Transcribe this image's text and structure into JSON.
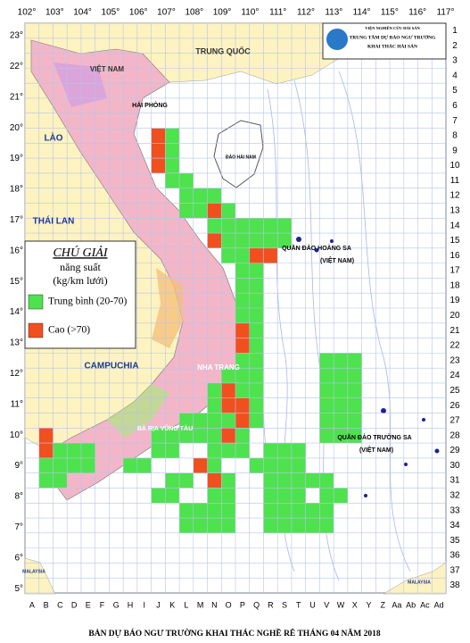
{
  "logo": {
    "lines": [
      "VIỆN NGHIÊN CỨU HẢI SẢN",
      "TRUNG TÂM DỰ BÁO NGƯ TRƯỜNG",
      "KHAI THÁC HẢI SẢN"
    ]
  },
  "map": {
    "longitude_labels": [
      "102°",
      "103°",
      "104°",
      "105°",
      "106°",
      "107°",
      "108°",
      "109°",
      "110°",
      "111°",
      "112°",
      "113°",
      "114°",
      "115°",
      "116°",
      "117°"
    ],
    "latitude_labels": [
      "23°",
      "22°",
      "21°",
      "20°",
      "19°",
      "18°",
      "17°",
      "16°",
      "15°",
      "14°",
      "13°",
      "12°",
      "11°",
      "10°",
      "9°",
      "8°",
      "7°",
      "6°",
      "5°"
    ],
    "row_labels": [
      "1",
      "2",
      "3",
      "4",
      "5",
      "6",
      "7",
      "8",
      "9",
      "10",
      "11",
      "12",
      "13",
      "14",
      "15",
      "16",
      "17",
      "18",
      "19",
      "20",
      "21",
      "22",
      "23",
      "24",
      "25",
      "26",
      "27",
      "28",
      "29",
      "30",
      "31",
      "32",
      "33",
      "34",
      "35",
      "36",
      "37",
      "38"
    ],
    "column_labels": [
      "A",
      "B",
      "C",
      "D",
      "E",
      "F",
      "G",
      "H",
      "I",
      "J",
      "K",
      "L",
      "M",
      "N",
      "O",
      "P",
      "Q",
      "R",
      "S",
      "T",
      "U",
      "V",
      "W",
      "X",
      "Y",
      "Z",
      "Aa",
      "Ab",
      "Ac",
      "Ad"
    ],
    "place_labels": [
      "TRUNG QUỐC",
      "VIỆT NAM",
      "LÀO",
      "THÁI LAN",
      "CAMPUCHIA",
      "HẢI PHÒNG",
      "ĐẢO HẢI NAM",
      "QUẦN ĐẢO HOÀNG SA",
      "(VIỆT NAM)",
      "QUẦN ĐẢO TRƯỜNG SA",
      "(VIỆT NAM)",
      "NHA TRANG",
      "BÀ RỊA VŨNG TÀU",
      "MALAYSIA",
      "MALAYSIA"
    ]
  },
  "legend": {
    "title": "CHÚ GIẢI",
    "subtitle": "năng suất",
    "unit": "(kg/km lưới)",
    "items": [
      {
        "label": "Trung bình (20-70)",
        "color": "#4ee24e"
      },
      {
        "label": "Cao (>70)",
        "color": "#f0501e"
      }
    ]
  },
  "footer": "BẢN DỰ BÁO NGƯ TRƯỜNG KHAI THÁC NGHỀ RÊ THÁNG 04 NĂM 2018"
}
